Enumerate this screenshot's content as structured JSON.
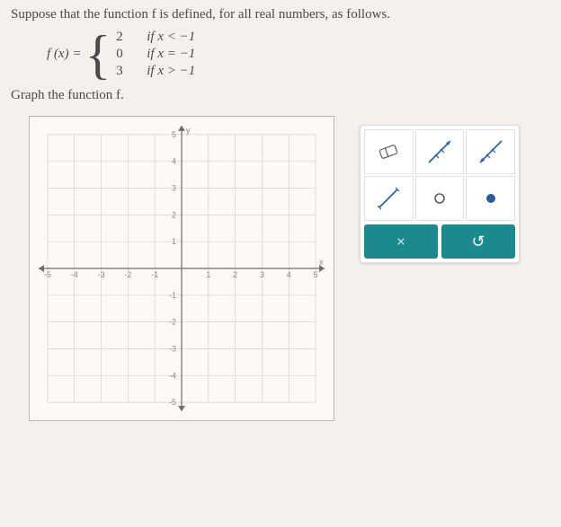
{
  "problem": {
    "intro": "Suppose that the function f is defined, for all real numbers, as follows.",
    "fn_name": "f (x) =",
    "cases": [
      {
        "value": "2",
        "condition": "if x < −1"
      },
      {
        "value": "0",
        "condition": "if x = −1"
      },
      {
        "value": "3",
        "condition": "if x > −1"
      }
    ],
    "instruction": "Graph the function f."
  },
  "graph": {
    "xmin": -5,
    "xmax": 5,
    "ymin": -5,
    "ymax": 5,
    "grid_color": "#d8d2cf",
    "axis_color": "#6b6b6b",
    "background": "#fcf9f7",
    "tick_labels_x": [
      "-5",
      "-4",
      "-3",
      "-2",
      "-1",
      "",
      "1",
      "2",
      "3",
      "4",
      "5"
    ],
    "tick_labels_y": [
      "-5",
      "-4",
      "-3",
      "-2",
      "-1",
      "",
      "1",
      "2",
      "3",
      "4",
      "5"
    ],
    "axis_label_x": "x",
    "axis_label_y": "y"
  },
  "palette": {
    "tools": [
      {
        "name": "eraser",
        "type": "eraser"
      },
      {
        "name": "ray-open-closed",
        "type": "ray1"
      },
      {
        "name": "ray-closed-open",
        "type": "ray2"
      },
      {
        "name": "segment",
        "type": "segment"
      },
      {
        "name": "open-point",
        "type": "open-circle"
      },
      {
        "name": "closed-point",
        "type": "closed-circle"
      }
    ],
    "actions": {
      "clear": "×",
      "undo": "↺"
    },
    "colors": {
      "button_bg": "#1a8a8f",
      "button_fg": "#ffffff",
      "marker": "#2a5aa0",
      "circle": "#5a5a5a"
    }
  }
}
